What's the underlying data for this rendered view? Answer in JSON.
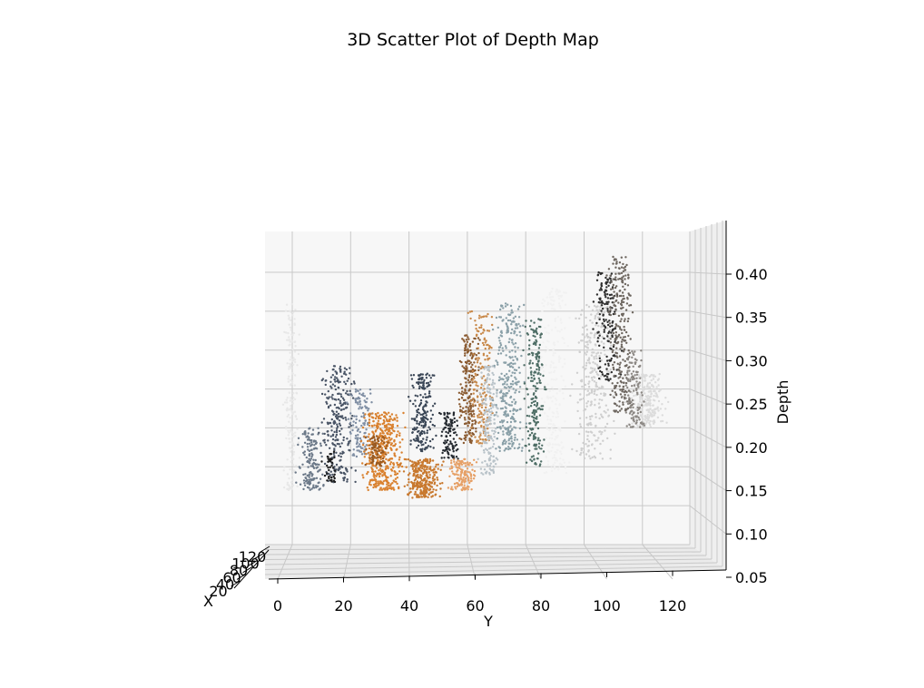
{
  "chart_data": {
    "type": "scatter",
    "projection": "3d",
    "title": "3D Scatter Plot of Depth Map",
    "xlabel": "X",
    "ylabel": "Y",
    "zlabel": "Depth",
    "xlim": [
      0,
      128
    ],
    "ylim": [
      0,
      128
    ],
    "zlim": [
      0.05,
      0.45
    ],
    "x_ticks": [
      20,
      40,
      60,
      80,
      100,
      120
    ],
    "y_ticks": [
      0,
      20,
      40,
      60,
      80,
      100,
      120
    ],
    "z_ticks": [
      0.05,
      0.1,
      0.15,
      0.2,
      0.25,
      0.3,
      0.35,
      0.4
    ],
    "y_tick_labels": [
      "0",
      "20",
      "40",
      "60",
      "80",
      "100",
      "120"
    ],
    "z_tick_labels": [
      "0.05",
      "0.10",
      "0.15",
      "0.20",
      "0.25",
      "0.30",
      "0.35",
      "0.40"
    ],
    "x_tick_labels": [
      "20",
      "40",
      "60",
      "80",
      "100",
      "120"
    ],
    "grid": true,
    "clusters": [
      {
        "y_center": 4,
        "y_spread": 3,
        "depth_low": 0.12,
        "depth_high": 0.36,
        "color": "#e8e8e8",
        "count": 170
      },
      {
        "y_center": 10,
        "y_spread": 5,
        "depth_low": 0.12,
        "depth_high": 0.2,
        "color": "#6b7888",
        "count": 150
      },
      {
        "y_center": 18,
        "y_spread": 7,
        "depth_low": 0.13,
        "depth_high": 0.28,
        "color": "#4a5566",
        "count": 260
      },
      {
        "y_center": 16,
        "y_spread": 3,
        "depth_low": 0.13,
        "depth_high": 0.17,
        "color": "#1e1e1e",
        "count": 40
      },
      {
        "y_center": 25,
        "y_spread": 5,
        "depth_low": 0.16,
        "depth_high": 0.25,
        "color": "#7f8ea3",
        "count": 120
      },
      {
        "y_center": 32,
        "y_spread": 8,
        "depth_low": 0.12,
        "depth_high": 0.22,
        "color": "#d9812f",
        "count": 420
      },
      {
        "y_center": 30,
        "y_spread": 4,
        "depth_low": 0.15,
        "depth_high": 0.19,
        "color": "#9a5a20",
        "count": 90
      },
      {
        "y_center": 44,
        "y_spread": 7,
        "depth_low": 0.11,
        "depth_high": 0.16,
        "color": "#c8792f",
        "count": 300
      },
      {
        "y_center": 44,
        "y_spread": 5,
        "depth_low": 0.17,
        "depth_high": 0.27,
        "color": "#3a4656",
        "count": 200
      },
      {
        "y_center": 52,
        "y_spread": 4,
        "depth_low": 0.16,
        "depth_high": 0.22,
        "color": "#252a30",
        "count": 110
      },
      {
        "y_center": 56,
        "y_spread": 6,
        "depth_low": 0.12,
        "depth_high": 0.16,
        "color": "#e6a066",
        "count": 140
      },
      {
        "y_center": 58,
        "y_spread": 4,
        "depth_low": 0.18,
        "depth_high": 0.32,
        "color": "#8a5a30",
        "count": 220
      },
      {
        "y_center": 62,
        "y_spread": 5,
        "depth_low": 0.18,
        "depth_high": 0.35,
        "color": "#c8894a",
        "count": 180
      },
      {
        "y_center": 64,
        "y_spread": 4,
        "depth_low": 0.14,
        "depth_high": 0.28,
        "color": "#b9c3c9",
        "count": 190
      },
      {
        "y_center": 70,
        "y_spread": 6,
        "depth_low": 0.17,
        "depth_high": 0.36,
        "color": "#8aa0a8",
        "count": 320
      },
      {
        "y_center": 78,
        "y_spread": 4,
        "depth_low": 0.15,
        "depth_high": 0.34,
        "color": "#4f6e66",
        "count": 220
      },
      {
        "y_center": 84,
        "y_spread": 6,
        "depth_low": 0.14,
        "depth_high": 0.38,
        "color": "#f1f1f1",
        "count": 240
      },
      {
        "y_center": 96,
        "y_spread": 8,
        "depth_low": 0.16,
        "depth_high": 0.36,
        "color": "#cfcfcf",
        "count": 300
      },
      {
        "y_center": 100,
        "y_spread": 5,
        "depth_low": 0.26,
        "depth_high": 0.4,
        "color": "#2f2f2f",
        "count": 160
      },
      {
        "y_center": 104,
        "y_spread": 5,
        "depth_low": 0.22,
        "depth_high": 0.42,
        "color": "#6e6760",
        "count": 260
      },
      {
        "y_center": 112,
        "y_spread": 7,
        "depth_low": 0.2,
        "depth_high": 0.27,
        "color": "#dcdcdc",
        "count": 240
      },
      {
        "y_center": 108,
        "y_spread": 4,
        "depth_low": 0.2,
        "depth_high": 0.3,
        "color": "#8c8884",
        "count": 120
      }
    ]
  }
}
